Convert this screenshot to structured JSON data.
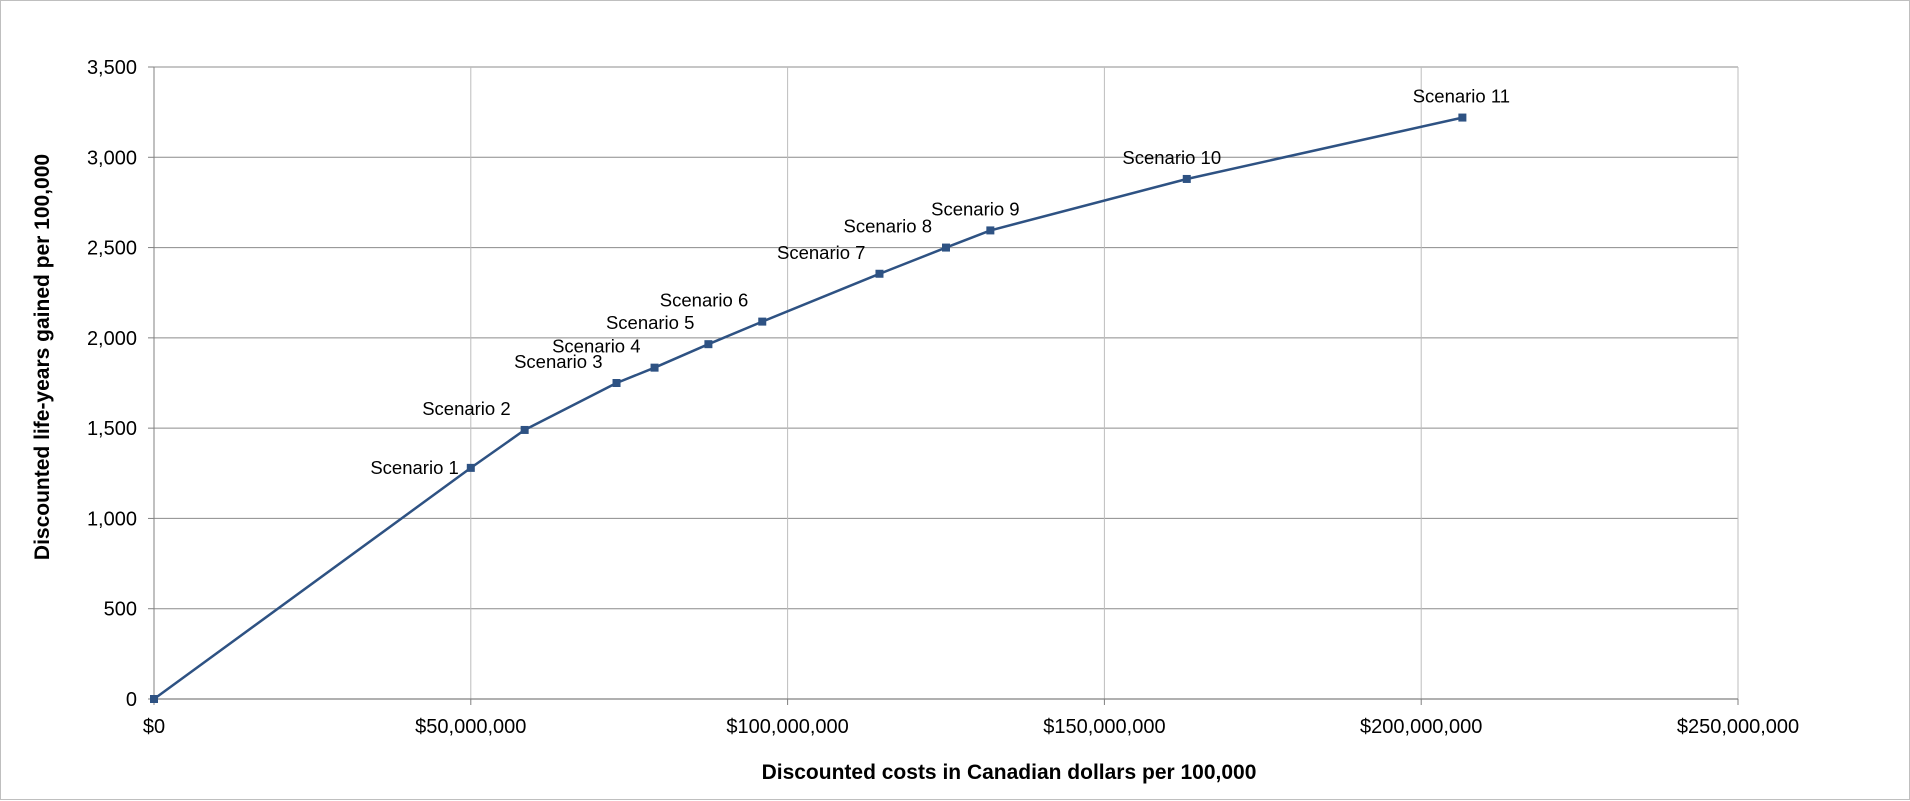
{
  "chart_data": {
    "type": "line",
    "title": "",
    "xlabel": "Discounted costs in Canadian dollars per 100,000",
    "ylabel": "Discounted life-years gained per 100,000",
    "xlim": [
      0,
      250000000
    ],
    "ylim": [
      0,
      3500
    ],
    "x_ticks": [
      0,
      50000000,
      100000000,
      150000000,
      200000000,
      250000000
    ],
    "x_tick_labels": [
      "$0",
      "$50,000,000",
      "$100,000,000",
      "$150,000,000",
      "$200,000,000",
      "$250,000,000"
    ],
    "y_ticks": [
      0,
      500,
      1000,
      1500,
      2000,
      2500,
      3000,
      3500
    ],
    "y_tick_labels": [
      "0",
      "500",
      "1,000",
      "1,500",
      "2,000",
      "2,500",
      "3,000",
      "3,500"
    ],
    "grid": true,
    "legend": "none",
    "series_color": "#2e5283",
    "points": [
      {
        "x": 0,
        "y": 0,
        "label": ""
      },
      {
        "x": 50000000,
        "y": 1280,
        "label": "Scenario 1"
      },
      {
        "x": 58500000,
        "y": 1490,
        "label": "Scenario 2"
      },
      {
        "x": 73000000,
        "y": 1750,
        "label": "Scenario 3"
      },
      {
        "x": 79000000,
        "y": 1835,
        "label": "Scenario 4"
      },
      {
        "x": 87500000,
        "y": 1965,
        "label": "Scenario 5"
      },
      {
        "x": 96000000,
        "y": 2090,
        "label": "Scenario 6"
      },
      {
        "x": 114500000,
        "y": 2355,
        "label": "Scenario 7"
      },
      {
        "x": 125000000,
        "y": 2500,
        "label": "Scenario 8"
      },
      {
        "x": 132000000,
        "y": 2595,
        "label": "Scenario 9"
      },
      {
        "x": 163000000,
        "y": 2880,
        "label": "Scenario 10"
      },
      {
        "x": 206500000,
        "y": 3220,
        "label": "Scenario 11"
      }
    ]
  }
}
